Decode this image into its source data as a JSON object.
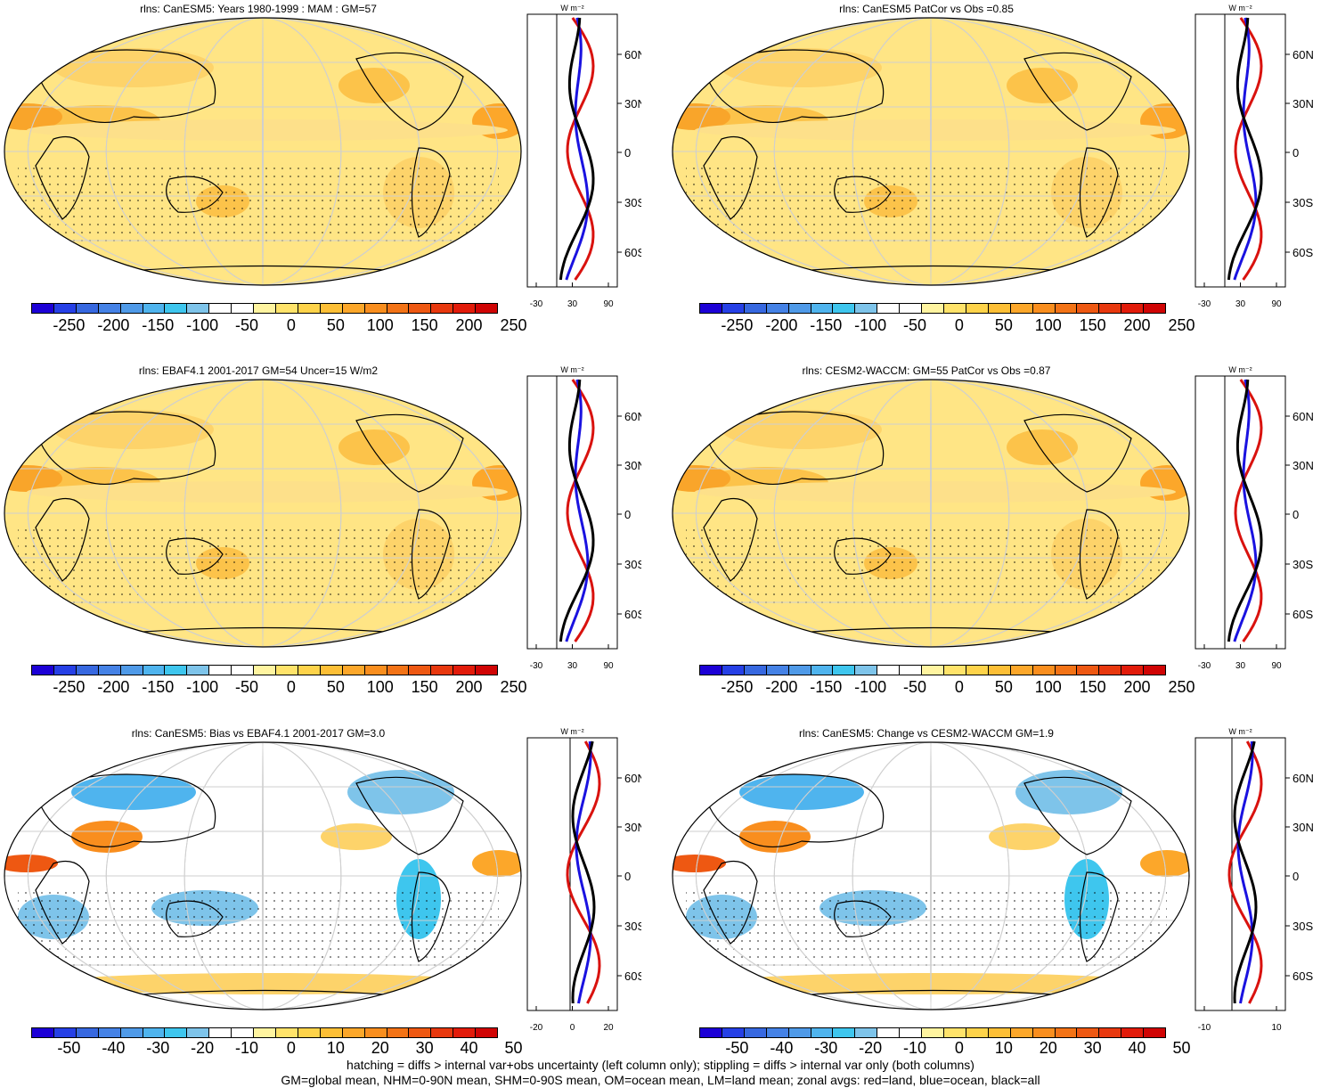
{
  "panels": [
    {
      "title": "rlns: CanESM5: Years 1980-1999 : MAM : GM=57",
      "style": "abs",
      "xticks": [
        "-30",
        "30",
        "90"
      ]
    },
    {
      "title": "rlns: CanESM5 PatCor vs Obs =0.85",
      "style": "abs",
      "xticks": [
        "-30",
        "30",
        "90"
      ]
    },
    {
      "title": "rlns: EBAF4.1 2001-2017 GM=54 Uncer=15 W/m2",
      "style": "abs",
      "xticks": [
        "-30",
        "30",
        "90"
      ]
    },
    {
      "title": "rlns: CESM2-WACCM: GM=55 PatCor vs Obs =0.87",
      "style": "abs",
      "xticks": [
        "-30",
        "30",
        "90"
      ]
    },
    {
      "title": "rlns: CanESM5: Bias vs EBAF4.1 2001-2017 GM=3.0",
      "style": "diff",
      "xticks": [
        "-20",
        "0",
        "20"
      ]
    },
    {
      "title": "rlns: CanESM5: Change vs CESM2-WACCM GM=1.9",
      "style": "diff",
      "xticks": [
        "-10",
        "10"
      ]
    }
  ],
  "profile_units": "W m⁻²",
  "lat_labels": [
    "60N",
    "30N",
    "0",
    "30S",
    "60S"
  ],
  "colorbar_abs": {
    "labels": [
      "-250",
      "-200",
      "-150",
      "-100",
      "-50",
      "0",
      "50",
      "100",
      "150",
      "200",
      "250"
    ],
    "colors": [
      "#1c00d6",
      "#2640e6",
      "#3768e0",
      "#4582e6",
      "#4f9ae8",
      "#4fb4ee",
      "#3ec6ee",
      "#7ec4ea",
      "#ffffff",
      "#ffffff",
      "#fff4a0",
      "#ffe36a",
      "#fed34a",
      "#fdbf36",
      "#fca72a",
      "#f98e1e",
      "#f37316",
      "#ee5812",
      "#e8380e",
      "#e21b0a",
      "#d00404"
    ]
  },
  "colorbar_diff": {
    "labels": [
      "-50",
      "-40",
      "-30",
      "-20",
      "-10",
      "0",
      "10",
      "20",
      "30",
      "40",
      "50"
    ],
    "colors": [
      "#1c00d6",
      "#2640e6",
      "#3768e0",
      "#4582e6",
      "#4f9ae8",
      "#4fb4ee",
      "#3ec6ee",
      "#7ec4ea",
      "#ffffff",
      "#ffffff",
      "#fff4a0",
      "#ffe36a",
      "#fed34a",
      "#fdbf36",
      "#fca72a",
      "#f98e1e",
      "#f37316",
      "#ee5812",
      "#e8380e",
      "#e21b0a",
      "#d00404"
    ]
  },
  "footnote": {
    "line1": "hatching = diffs > internal var+obs uncertainty (left column only); stippling = diffs > internal var only (both columns)",
    "line2": "GM=global mean, NHM=0-90N mean, SHM=0-90S mean, OM=ocean mean, LM=land mean; zonal avgs: red=land, blue=ocean, black=all"
  },
  "colors": {
    "land_line": "#d9120e",
    "ocean_line": "#1a12e0",
    "all_line": "#000000",
    "map_abs_fill": "#ffe585",
    "map_abs_dark": "#fcc34a",
    "map_diff_fill": "#ffffff"
  }
}
